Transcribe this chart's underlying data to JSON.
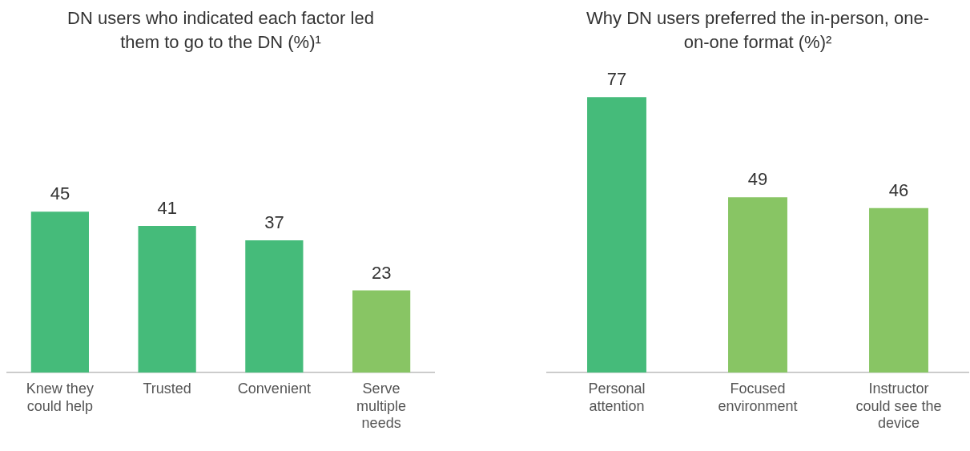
{
  "chart_data": [
    {
      "type": "bar",
      "title": "DN users who indicated each factor led them to go to the DN (%)¹",
      "categories": [
        "Knew they could help",
        "Trusted",
        "Convenient",
        "Serve multiple needs"
      ],
      "values": [
        45,
        41,
        37,
        23
      ],
      "colors": [
        "#45bb7a",
        "#45bb7a",
        "#45bb7a",
        "#88c564"
      ],
      "data_labels": true,
      "grid": false,
      "legend": false,
      "tick_labels": "x"
    },
    {
      "type": "bar",
      "title": "Why DN users preferred the in-person, one-on-one format (%)²",
      "categories": [
        "Personal attention",
        "Focused environment",
        "Instructor could see the device"
      ],
      "values": [
        77,
        49,
        46
      ],
      "colors": [
        "#45bb7a",
        "#88c564",
        "#88c564"
      ],
      "data_labels": true,
      "grid": false,
      "legend": false,
      "tick_labels": "x"
    }
  ]
}
